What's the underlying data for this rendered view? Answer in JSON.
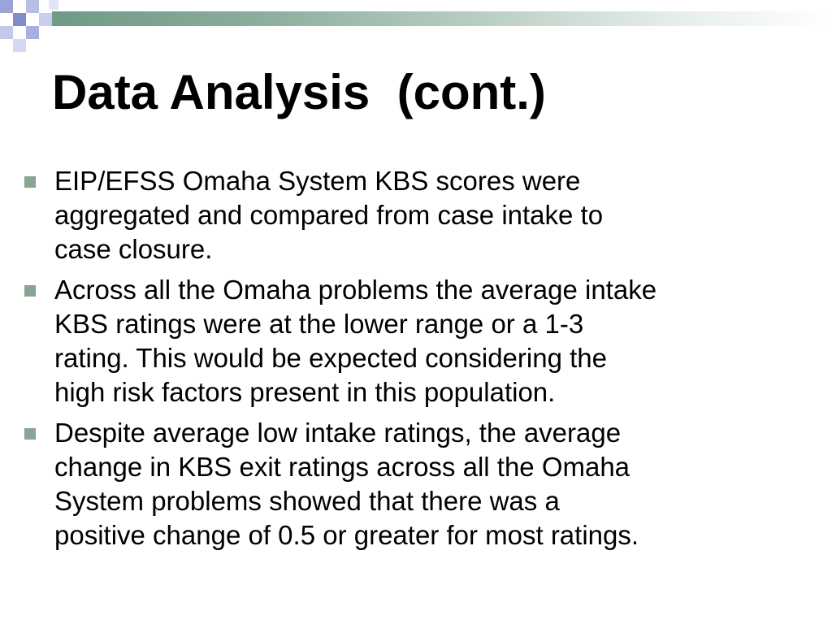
{
  "slide": {
    "title": "Data Analysis  (cont.)",
    "bullets": [
      {
        "text": "EIP/EFSS Omaha System KBS scores were\naggregated and compared from case intake to\ncase closure."
      },
      {
        "text": "Across all the Omaha problems the average intake\nKBS ratings were at the lower range or a 1-3\nrating.  This would be expected considering the\nhigh risk factors present in this population."
      },
      {
        "text": "Despite average low intake ratings, the average\nchange in KBS exit ratings across all the Omaha\nSystem problems showed that there was a\npositive change of 0.5 or greater for most ratings."
      }
    ]
  },
  "colors": {
    "accent_green": "#87a592",
    "bar_start": "#6f9a86",
    "decor_blue": "#9aa4d6"
  }
}
